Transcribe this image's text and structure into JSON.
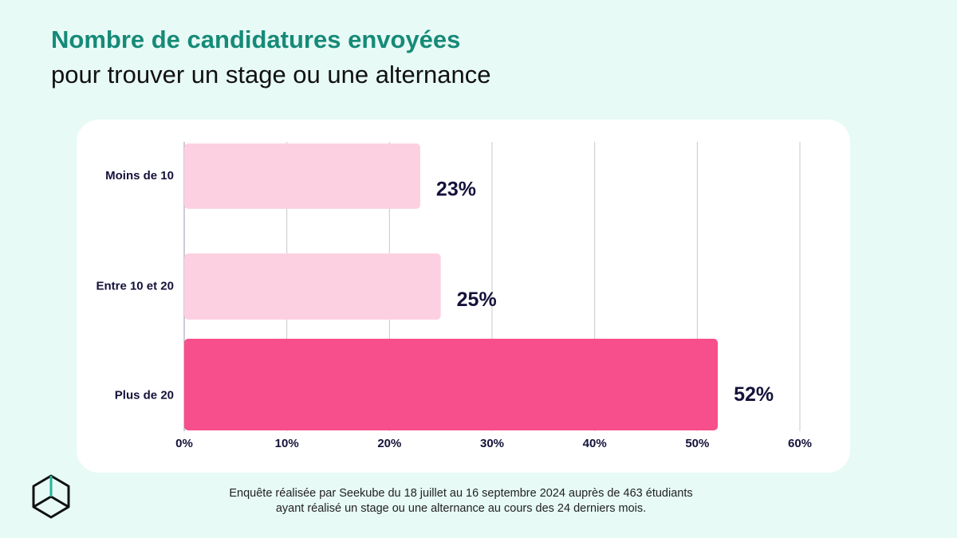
{
  "chart_data": {
    "type": "bar",
    "orientation": "horizontal",
    "title": "Nombre de candidatures envoyées",
    "subtitle": "pour trouver un stage ou une alternance",
    "categories": [
      "Moins de 10",
      "Entre 10 et 20",
      "Plus de 20"
    ],
    "values": [
      23,
      25,
      52
    ],
    "value_labels": [
      "23%",
      "25%",
      "52%"
    ],
    "colors": [
      "#fdd0e1",
      "#fdd0e1",
      "#f74f8b"
    ],
    "xlim": [
      0,
      60
    ],
    "xticks": [
      {
        "value": 0,
        "label": "0%"
      },
      {
        "value": 10,
        "label": "10%"
      },
      {
        "value": 20,
        "label": "20%"
      },
      {
        "value": 30,
        "label": "30%"
      },
      {
        "value": 40,
        "label": "40%"
      },
      {
        "value": 50,
        "label": "50%"
      },
      {
        "value": 60,
        "label": "60%"
      }
    ],
    "grid": true,
    "footnote": [
      "Enquête réalisée par Seekube du 18 juillet au 16 septembre 2024 auprès de 463 étudiants",
      "ayant réalisé un stage ou une alternance au cours des 24 derniers mois."
    ]
  }
}
